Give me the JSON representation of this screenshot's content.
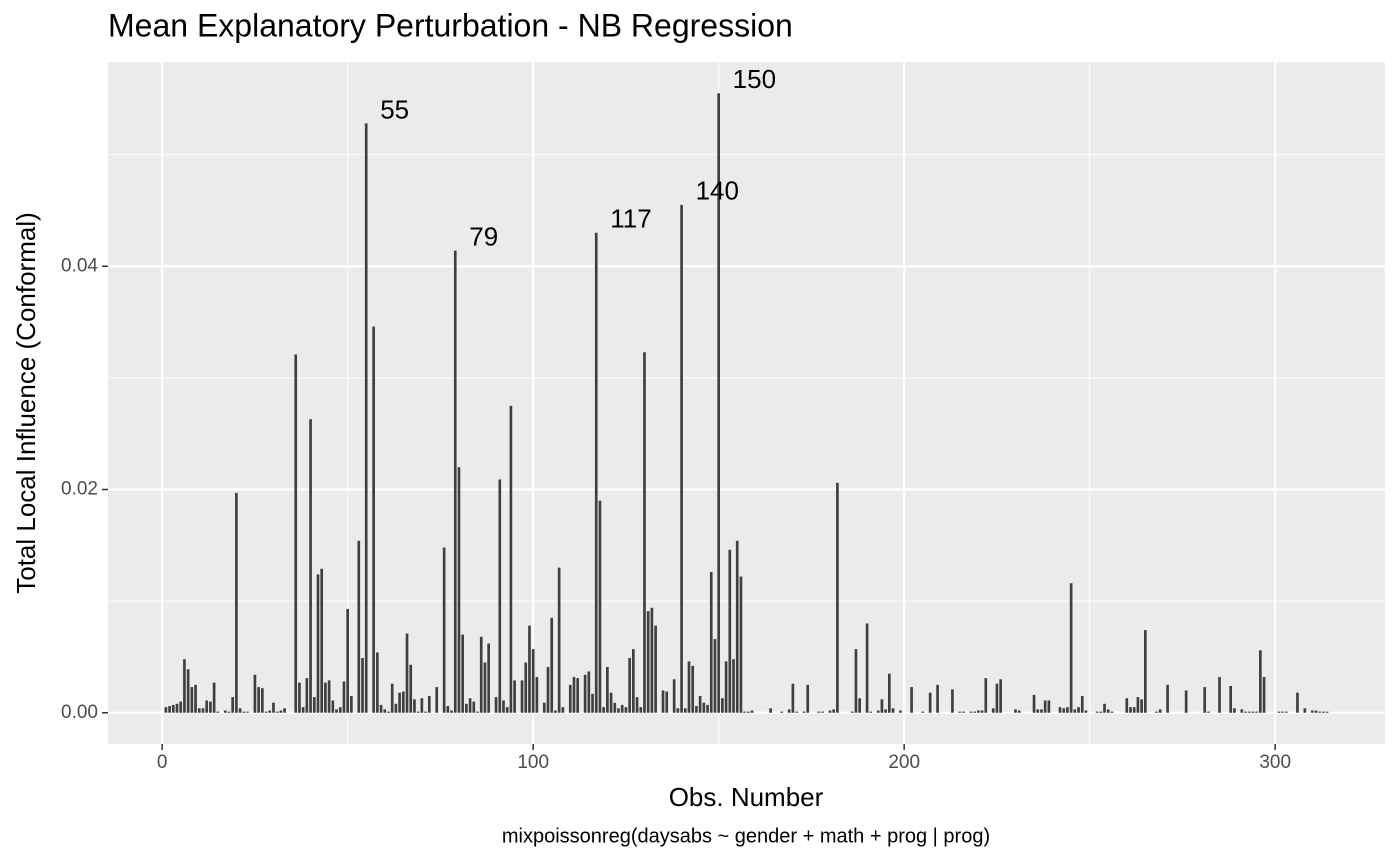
{
  "chart_data": {
    "type": "bar",
    "title": "Mean Explanatory Perturbation - NB Regression",
    "xlabel": "Obs. Number",
    "ylabel": "Total Local Influence (Conformal)",
    "caption": "mixpoissonreg(daysabs ~ gender + math + prog | prog)",
    "color": "#3f3f3f",
    "grid": true,
    "xlim": [
      -14.6,
      329.6
    ],
    "ylim": [
      -0.0028,
      0.0583
    ],
    "xticks": [
      0,
      100,
      200,
      300
    ],
    "xminor": [
      50,
      150,
      250
    ],
    "yticks": [
      {
        "value": 0,
        "label": "0.00"
      },
      {
        "value": 0.02,
        "label": "0.02"
      },
      {
        "value": 0.04,
        "label": "0.04"
      }
    ],
    "yminor": [
      0.01,
      0.03,
      0.05
    ],
    "annotations": [
      {
        "x": 55,
        "label": "55"
      },
      {
        "x": 150,
        "label": "150"
      },
      {
        "x": 79,
        "label": "79"
      },
      {
        "x": 117,
        "label": "117"
      },
      {
        "x": 140,
        "label": "140"
      }
    ],
    "x": [
      1,
      2,
      3,
      4,
      5,
      6,
      7,
      8,
      9,
      10,
      11,
      12,
      13,
      14,
      15,
      16,
      17,
      18,
      19,
      20,
      21,
      22,
      23,
      24,
      25,
      26,
      27,
      28,
      29,
      30,
      31,
      32,
      33,
      34,
      35,
      36,
      37,
      38,
      39,
      40,
      41,
      42,
      43,
      44,
      45,
      46,
      47,
      48,
      49,
      50,
      51,
      52,
      53,
      54,
      55,
      56,
      57,
      58,
      59,
      60,
      61,
      62,
      63,
      64,
      65,
      66,
      67,
      68,
      69,
      70,
      71,
      72,
      73,
      74,
      75,
      76,
      77,
      78,
      79,
      80,
      81,
      82,
      83,
      84,
      85,
      86,
      87,
      88,
      89,
      90,
      91,
      92,
      93,
      94,
      95,
      96,
      97,
      98,
      99,
      100,
      101,
      102,
      103,
      104,
      105,
      106,
      107,
      108,
      109,
      110,
      111,
      112,
      113,
      114,
      115,
      116,
      117,
      118,
      119,
      120,
      121,
      122,
      123,
      124,
      125,
      126,
      127,
      128,
      129,
      130,
      131,
      132,
      133,
      134,
      135,
      136,
      137,
      138,
      139,
      140,
      141,
      142,
      143,
      144,
      145,
      146,
      147,
      148,
      149,
      150,
      151,
      152,
      153,
      154,
      155,
      156,
      157,
      158,
      159,
      160,
      161,
      162,
      163,
      164,
      165,
      166,
      167,
      168,
      169,
      170,
      171,
      172,
      173,
      174,
      175,
      176,
      177,
      178,
      179,
      180,
      181,
      182,
      183,
      184,
      185,
      186,
      187,
      188,
      189,
      190,
      191,
      192,
      193,
      194,
      195,
      196,
      197,
      198,
      199,
      200,
      201,
      202,
      203,
      204,
      205,
      206,
      207,
      208,
      209,
      210,
      211,
      212,
      213,
      214,
      215,
      216,
      217,
      218,
      219,
      220,
      221,
      222,
      223,
      224,
      225,
      226,
      227,
      228,
      229,
      230,
      231,
      232,
      233,
      234,
      235,
      236,
      237,
      238,
      239,
      240,
      241,
      242,
      243,
      244,
      245,
      246,
      247,
      248,
      249,
      250,
      251,
      252,
      253,
      254,
      255,
      256,
      257,
      258,
      259,
      260,
      261,
      262,
      263,
      264,
      265,
      266,
      267,
      268,
      269,
      270,
      271,
      272,
      273,
      274,
      275,
      276,
      277,
      278,
      279,
      280,
      281,
      282,
      283,
      284,
      285,
      286,
      287,
      288,
      289,
      290,
      291,
      292,
      293,
      294,
      295,
      296,
      297,
      298,
      299,
      300,
      301,
      302,
      303,
      304,
      305,
      306,
      307,
      308,
      309,
      310,
      311,
      312,
      313,
      314
    ],
    "values": [
      0.0005,
      0.0006,
      0.0007,
      0.0008,
      0.001,
      0.0048,
      0.0039,
      0.0023,
      0.0025,
      0.0004,
      0.0004,
      0.0011,
      0.001,
      0.0027,
      0.0001,
      0,
      0.0002,
      0.0001,
      0.0014,
      0.0197,
      0.0004,
      0.0001,
      0.0001,
      0,
      0.0034,
      0.0023,
      0.0022,
      0.0001,
      0.0002,
      0.0009,
      0.0001,
      0.0002,
      0.0004,
      0,
      0,
      0.0321,
      0.0027,
      0.0005,
      0.0031,
      0.0263,
      0.0014,
      0.0124,
      0.0129,
      0.0027,
      0.0029,
      0.0011,
      0.0003,
      0.0005,
      0.0028,
      0.0093,
      0.0015,
      0,
      0.0154,
      0.0049,
      0.0528,
      0,
      0.0346,
      0.0054,
      0.0007,
      0.0003,
      0.0001,
      0.0026,
      0.0008,
      0.0018,
      0.0019,
      0.0071,
      0.0043,
      0.0012,
      0.0001,
      0.0013,
      0.0001,
      0.0015,
      0,
      0.0023,
      0,
      0.0148,
      0.0006,
      0.0002,
      0.0414,
      0.022,
      0.007,
      0.0008,
      0.0013,
      0.001,
      0.0001,
      0.0068,
      0.0045,
      0.0062,
      0,
      0.0014,
      0.0209,
      0.0011,
      0.0005,
      0.0275,
      0.0029,
      0,
      0.0029,
      0.0045,
      0.0078,
      0.0057,
      0.0032,
      0,
      0.0009,
      0.0041,
      0.0085,
      0.0002,
      0.013,
      0.0005,
      0,
      0.0025,
      0.0032,
      0.0031,
      0,
      0.0034,
      0.0037,
      0.0017,
      0.043,
      0.019,
      0.0005,
      0.0041,
      0.0018,
      0.0009,
      0.0004,
      0.0007,
      0.0005,
      0.0049,
      0.0057,
      0.0014,
      0.0005,
      0.0323,
      0.0091,
      0.0094,
      0.0078,
      0,
      0.002,
      0.0019,
      0,
      0.003,
      0.0004,
      0.0455,
      0.0004,
      0.0046,
      0.0042,
      0.0006,
      0.0015,
      0.0009,
      0.0007,
      0.0126,
      0.0066,
      0.0555,
      0.0013,
      0.0046,
      0.0146,
      0.0048,
      0.0154,
      0.0122,
      0.0001,
      0.0001,
      0.0002,
      0,
      0,
      0,
      0,
      0.0004,
      0,
      0,
      0.0001,
      0,
      0.0003,
      0.0026,
      0.0001,
      0,
      0.0001,
      0.0025,
      0,
      0,
      0.0001,
      0.0001,
      0,
      0.0002,
      0.0003,
      0.0206,
      0,
      0,
      0,
      0.0001,
      0.0057,
      0.0013,
      0,
      0.008,
      0.0001,
      0,
      0.0002,
      0.0012,
      0.0003,
      0.0035,
      0.0004,
      0,
      0.0002,
      0,
      0,
      0.0023,
      0,
      0,
      0.0001,
      0,
      0.0018,
      0,
      0.0025,
      0,
      0,
      0,
      0.0021,
      0,
      0.0001,
      0.0001,
      0,
      0.0001,
      0.0001,
      0.0002,
      0.0002,
      0.0031,
      0,
      0.0004,
      0.0026,
      0.003,
      0,
      0,
      0,
      0.0003,
      0.0002,
      0,
      0,
      0,
      0.0016,
      0.0003,
      0.0003,
      0.0011,
      0.0011,
      0,
      0,
      0.0005,
      0.0004,
      0.0005,
      0.0116,
      0.0003,
      0.0005,
      0.0015,
      0.0002,
      0,
      0,
      0.0001,
      0.0001,
      0.0008,
      0.0003,
      0.0001,
      0,
      0,
      0,
      0.0013,
      0.0005,
      0.0005,
      0.0014,
      0.0012,
      0.0074,
      0,
      0,
      0.0001,
      0.0003,
      0,
      0.0025,
      0,
      0,
      0,
      0,
      0.002,
      0,
      0,
      0,
      0,
      0.0023,
      0.0001,
      0,
      0,
      0.0032,
      0,
      0,
      0.0024,
      0.0004,
      0,
      0.0003,
      0.0001,
      0.0001,
      0.0001,
      0.0001,
      0.0056,
      0.0032,
      0,
      0,
      0,
      0.0001,
      0.0001,
      0.0001,
      0,
      0,
      0.0018,
      0,
      0.0004,
      0,
      0.0002,
      0.0002,
      0.0001,
      0.0001,
      0.0001
    ]
  }
}
